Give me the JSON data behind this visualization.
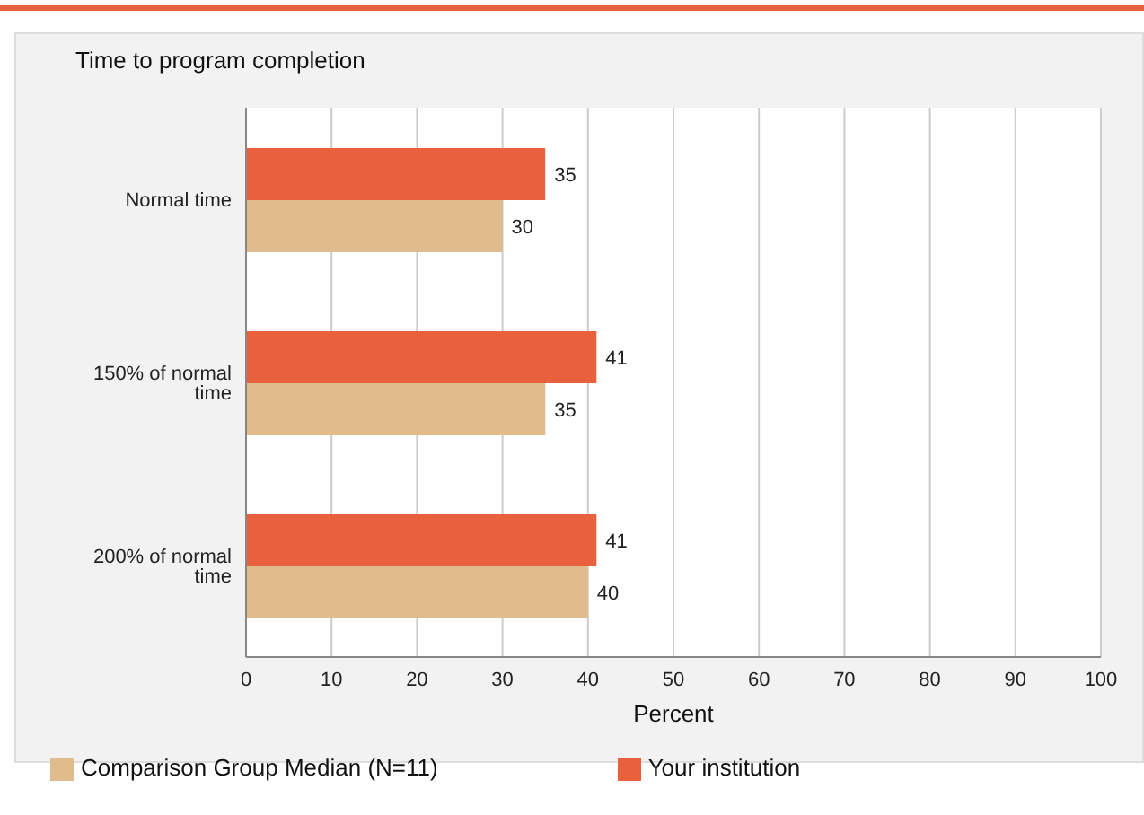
{
  "chart_data": {
    "type": "bar",
    "orientation": "horizontal",
    "title": "Time to program completion",
    "xlabel": "Percent",
    "categories": [
      "Normal time",
      "150% of normal time",
      "200% of normal time"
    ],
    "series": [
      {
        "name": "Your institution",
        "color": "#e8603c",
        "values": [
          35,
          41,
          41
        ]
      },
      {
        "name": "Comparison Group Median (N=11)",
        "color": "#e0bc8c",
        "values": [
          30,
          35,
          40
        ]
      }
    ],
    "xlim": [
      0,
      100
    ],
    "xticks": [
      0,
      10,
      20,
      30,
      40,
      50,
      60,
      70,
      80,
      90,
      100
    ],
    "grid": "x",
    "data_labels": true,
    "legend": "bottom left"
  }
}
